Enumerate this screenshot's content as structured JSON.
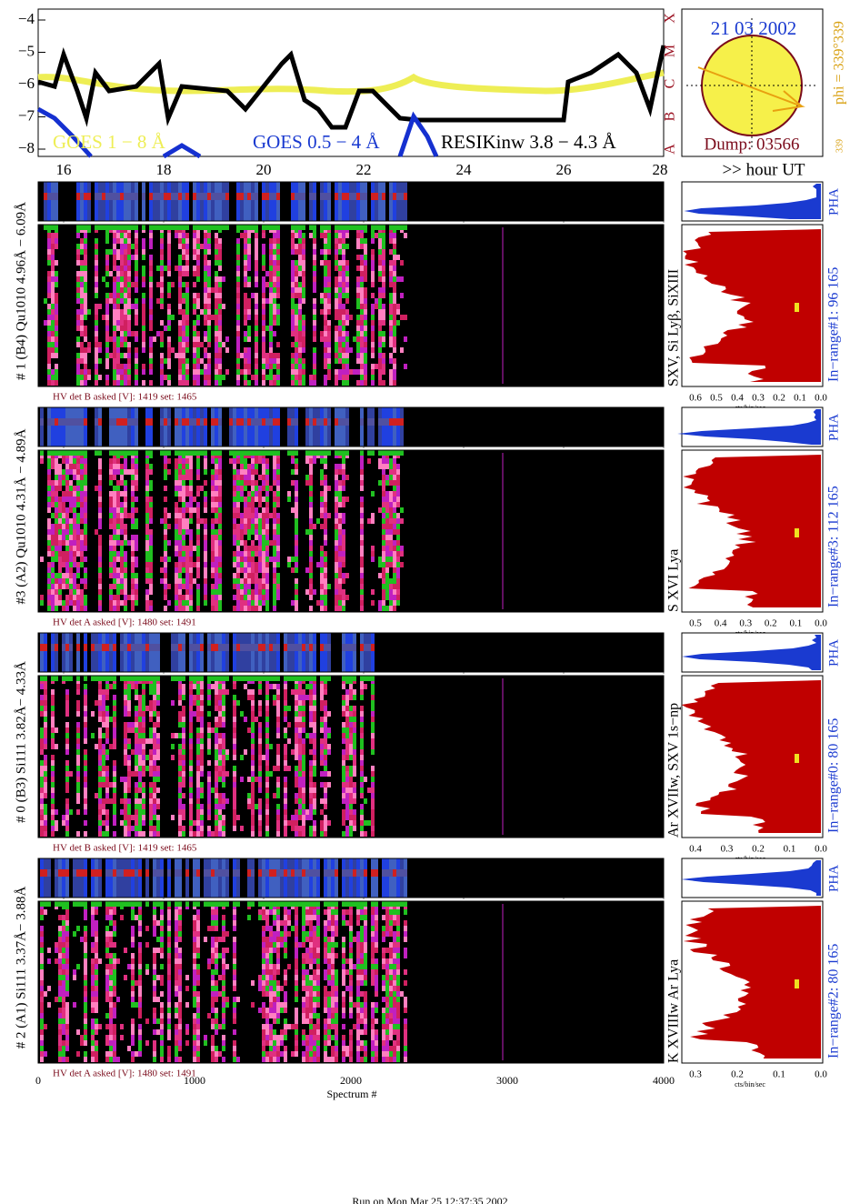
{
  "goes": {
    "yticks": [
      "−4",
      "−5",
      "−6",
      "−7",
      "−8"
    ],
    "xticks": [
      "16",
      "18",
      "20",
      "22",
      "24",
      "26",
      "28"
    ],
    "class_labels": [
      "X",
      "M",
      "C",
      "B",
      "A"
    ],
    "legend": [
      "GOES 1 − 8 Å",
      "GOES 0.5 − 4 Å",
      "RESIKinw 3.8 − 4.3 Å"
    ],
    "unit": ">> hour UT"
  },
  "sun": {
    "date": "21 03 2002",
    "dump": "Dump: 03566",
    "phi": "phi = 339°339",
    "small": "339"
  },
  "panels": [
    {
      "label": "# 1 (B4) Qu1010 4.96Å − 6.09Å",
      "lines": "SXV, Si Lyβ, SiXIII",
      "range": "In−range#1:  96 165",
      "hv": "HV det B asked [V]:  1419 set:  1465",
      "pha": "PHA",
      "xticks": [
        "0.6",
        "0.5",
        "0.4",
        "0.3",
        "0.2",
        "0.1",
        "0.0"
      ],
      "xlabel": "cts/bin/sec"
    },
    {
      "label": "#3 (A2) Qu1010  4.31Å − 4.89Å",
      "lines": "S XVI Lya",
      "range": "In−range#3:  112 165",
      "hv": "HV det A asked [V]:  1480 set:  1491",
      "pha": "PHA",
      "xticks": [
        "0.5",
        "0.4",
        "0.3",
        "0.2",
        "0.1",
        "0.0"
      ],
      "xlabel": "cts/bin/sec"
    },
    {
      "label": "# 0 (B3) Si111  3.82Å− 4.33Å",
      "lines": "Ar XVIIw, SXV 1s−np",
      "range": "In−range#0:  80 165",
      "hv": "HV det B asked [V]:  1419 set:  1465",
      "pha": "PHA",
      "xticks": [
        "0.4",
        "0.3",
        "0.2",
        "0.1",
        "0.0"
      ],
      "xlabel": "cts/bin/sec"
    },
    {
      "label": "# 2 (A1) Si111  3.37Å− 3.88Å",
      "lines": "K XVIIIw  Ar Lya",
      "range": "In−range#2:  80 165",
      "hv": "HV det A asked [V]:  1480 set:  1491",
      "pha": "PHA",
      "xticks": [
        "0.3",
        "0.2",
        "0.1",
        "0.0"
      ],
      "xlabel": "cts/bin/sec"
    }
  ],
  "bottom_axis": {
    "xticks": [
      "0",
      "1000",
      "2000",
      "3000",
      "4000"
    ],
    "xlabel": "Spectrum #"
  },
  "footer": "Run on Mon Mar 25 12:37:35 2002"
}
